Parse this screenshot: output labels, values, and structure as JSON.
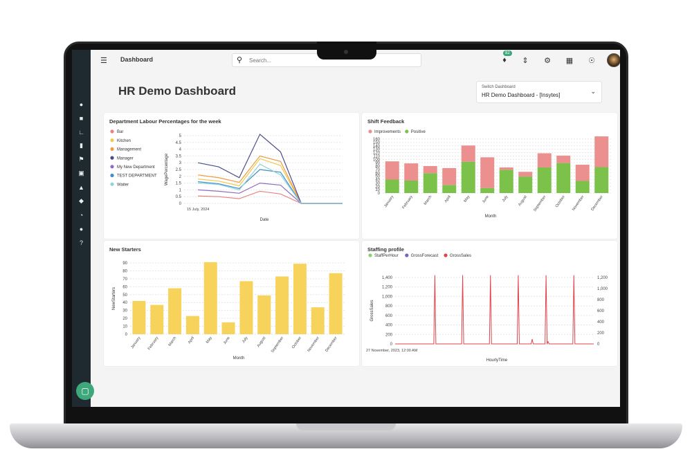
{
  "topbar": {
    "breadcrumb": "Dashboard",
    "search_placeholder": "Search...",
    "notifications_count": "82"
  },
  "page": {
    "title": "HR Demo Dashboard",
    "switch_label": "Switch Dashboard",
    "switch_value": "HR Demo Dashboard - [Insytes]"
  },
  "colors": {
    "accent": "#3ea77b",
    "sidebar": "#1f2a30"
  },
  "chart_data": [
    {
      "type": "line",
      "title": "Department Labour Percentages for the week",
      "xlabel": "Date",
      "ylabel": "WagePercentage",
      "x_tick": "15 July, 2024",
      "ylim": [
        0,
        5
      ],
      "yticks": [
        "0",
        "0.5",
        "1",
        "1.5",
        "2",
        "2.5",
        "3",
        "3.5",
        "4",
        "4.5",
        "5"
      ],
      "legend_position": "left",
      "series": [
        {
          "name": "Bar",
          "color": "#e88183",
          "values": [
            0.55,
            0.5,
            0.35,
            0.9,
            0.7,
            0,
            0,
            0
          ]
        },
        {
          "name": "Kitchen",
          "color": "#f2c94c",
          "values": [
            1.8,
            1.65,
            1.3,
            3.3,
            2.8,
            0,
            0,
            0
          ]
        },
        {
          "name": "Management",
          "color": "#f29a3c",
          "values": [
            2.1,
            1.9,
            1.55,
            3.5,
            3.1,
            0,
            0,
            0
          ]
        },
        {
          "name": "Manager",
          "color": "#4a4d8a",
          "values": [
            3.0,
            2.7,
            1.9,
            5.1,
            3.8,
            0,
            0,
            0
          ]
        },
        {
          "name": "My New Department",
          "color": "#8e6cc4",
          "values": [
            1.0,
            0.9,
            0.75,
            1.5,
            1.35,
            0,
            0,
            0
          ]
        },
        {
          "name": "TEST DEPARTMENT",
          "color": "#3d8ec9",
          "values": [
            1.6,
            1.45,
            1.1,
            2.5,
            2.3,
            0,
            0,
            0
          ]
        },
        {
          "name": "Waiter",
          "color": "#8fd3d6",
          "values": [
            1.5,
            1.4,
            1.0,
            2.9,
            2.1,
            0,
            0,
            0
          ]
        }
      ]
    },
    {
      "type": "bar",
      "title": "Shift Feedback",
      "xlabel": "Month",
      "ylim": [
        0,
        160
      ],
      "yticks": [
        "0",
        "10",
        "20",
        "30",
        "40",
        "50",
        "60",
        "70",
        "80",
        "90",
        "100",
        "110",
        "120",
        "130",
        "140",
        "150",
        "160"
      ],
      "legend_position": "top-left",
      "categories": [
        "January",
        "February",
        "March",
        "April",
        "May",
        "June",
        "July",
        "August",
        "September",
        "October",
        "November",
        "December"
      ],
      "series": [
        {
          "name": "Improvements",
          "color": "#ec8f8f",
          "values": [
            54,
            51,
            21,
            50,
            48,
            91,
            7,
            14,
            42,
            22,
            48,
            91
          ]
        },
        {
          "name": "Positive",
          "color": "#7cc24a",
          "values": [
            40,
            37,
            59,
            24,
            93,
            15,
            69,
            49,
            76,
            89,
            36,
            77
          ]
        }
      ]
    },
    {
      "type": "bar",
      "title": "New Starters",
      "xlabel": "Month",
      "ylabel": "NewStarters",
      "ylim": [
        0,
        90
      ],
      "yticks": [
        "0",
        "10",
        "20",
        "30",
        "40",
        "50",
        "60",
        "70",
        "80",
        "90"
      ],
      "categories": [
        "January",
        "February",
        "March",
        "April",
        "May",
        "June",
        "July",
        "August",
        "September",
        "October",
        "November",
        "December"
      ],
      "values": [
        42,
        37,
        58,
        23,
        91,
        15,
        67,
        49,
        73,
        89,
        34,
        77
      ],
      "color": "#f7d35c"
    },
    {
      "type": "line",
      "title": "Staffing profile",
      "xlabel": "HourlyTime",
      "ylabel": "GrossSales",
      "x_tick": "27 November, 2023, 12:00 AM",
      "ylim": [
        0,
        1400
      ],
      "yticks": [
        "0",
        "200",
        "400",
        "600",
        "800",
        "1,000",
        "1,200",
        "1,400"
      ],
      "ylim_right": [
        0,
        1200
      ],
      "yticks_right": [
        "0",
        "200",
        "400",
        "600",
        "800",
        "1,000",
        "1,200"
      ],
      "legend_position": "top-left",
      "series": [
        {
          "name": "StaffPerHour",
          "color": "#8ed16e"
        },
        {
          "name": "GrossForecast",
          "color": "#7a5fc1"
        },
        {
          "name": "GrossSales",
          "color": "#e0434a",
          "spikes": [
            {
              "x": 0.2,
              "y": 1450
            },
            {
              "x": 0.34,
              "y": 1450
            },
            {
              "x": 0.48,
              "y": 1450
            },
            {
              "x": 0.62,
              "y": 1450
            },
            {
              "x": 0.76,
              "y": 1450
            },
            {
              "x": 0.9,
              "y": 1450
            },
            {
              "x": 0.69,
              "y": 100
            },
            {
              "x": 0.77,
              "y": 50
            }
          ]
        }
      ]
    }
  ]
}
